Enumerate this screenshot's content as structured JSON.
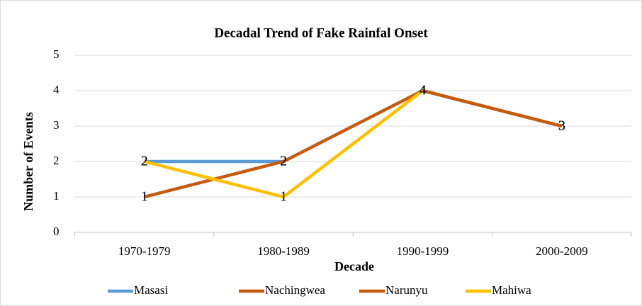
{
  "chart_data": {
    "type": "line",
    "title": "Decadal Trend of Fake Rainfal Onset",
    "x_label": "Decade",
    "y_label": "Number of Events",
    "categories": [
      "1970-1979",
      "1980-1989",
      "1990-1999",
      "2000-2009"
    ],
    "series": [
      {
        "name": "Masasi",
        "color": "#5b9bd5",
        "values": [
          2,
          2,
          null,
          null
        ]
      },
      {
        "name": "Nachingwea",
        "color": "#c55a11",
        "values": [
          1,
          2,
          4,
          3
        ]
      },
      {
        "name": "Narunyu",
        "color": "#c55a11",
        "values": [
          null,
          null,
          4,
          3
        ]
      },
      {
        "name": "Mahiwa",
        "color": "#ffc000",
        "values": [
          2,
          1,
          4,
          null
        ]
      }
    ],
    "ylim": [
      0,
      5
    ],
    "yticks": [
      0,
      1,
      2,
      3,
      4,
      5
    ],
    "grid": true,
    "legend": "bottom"
  }
}
